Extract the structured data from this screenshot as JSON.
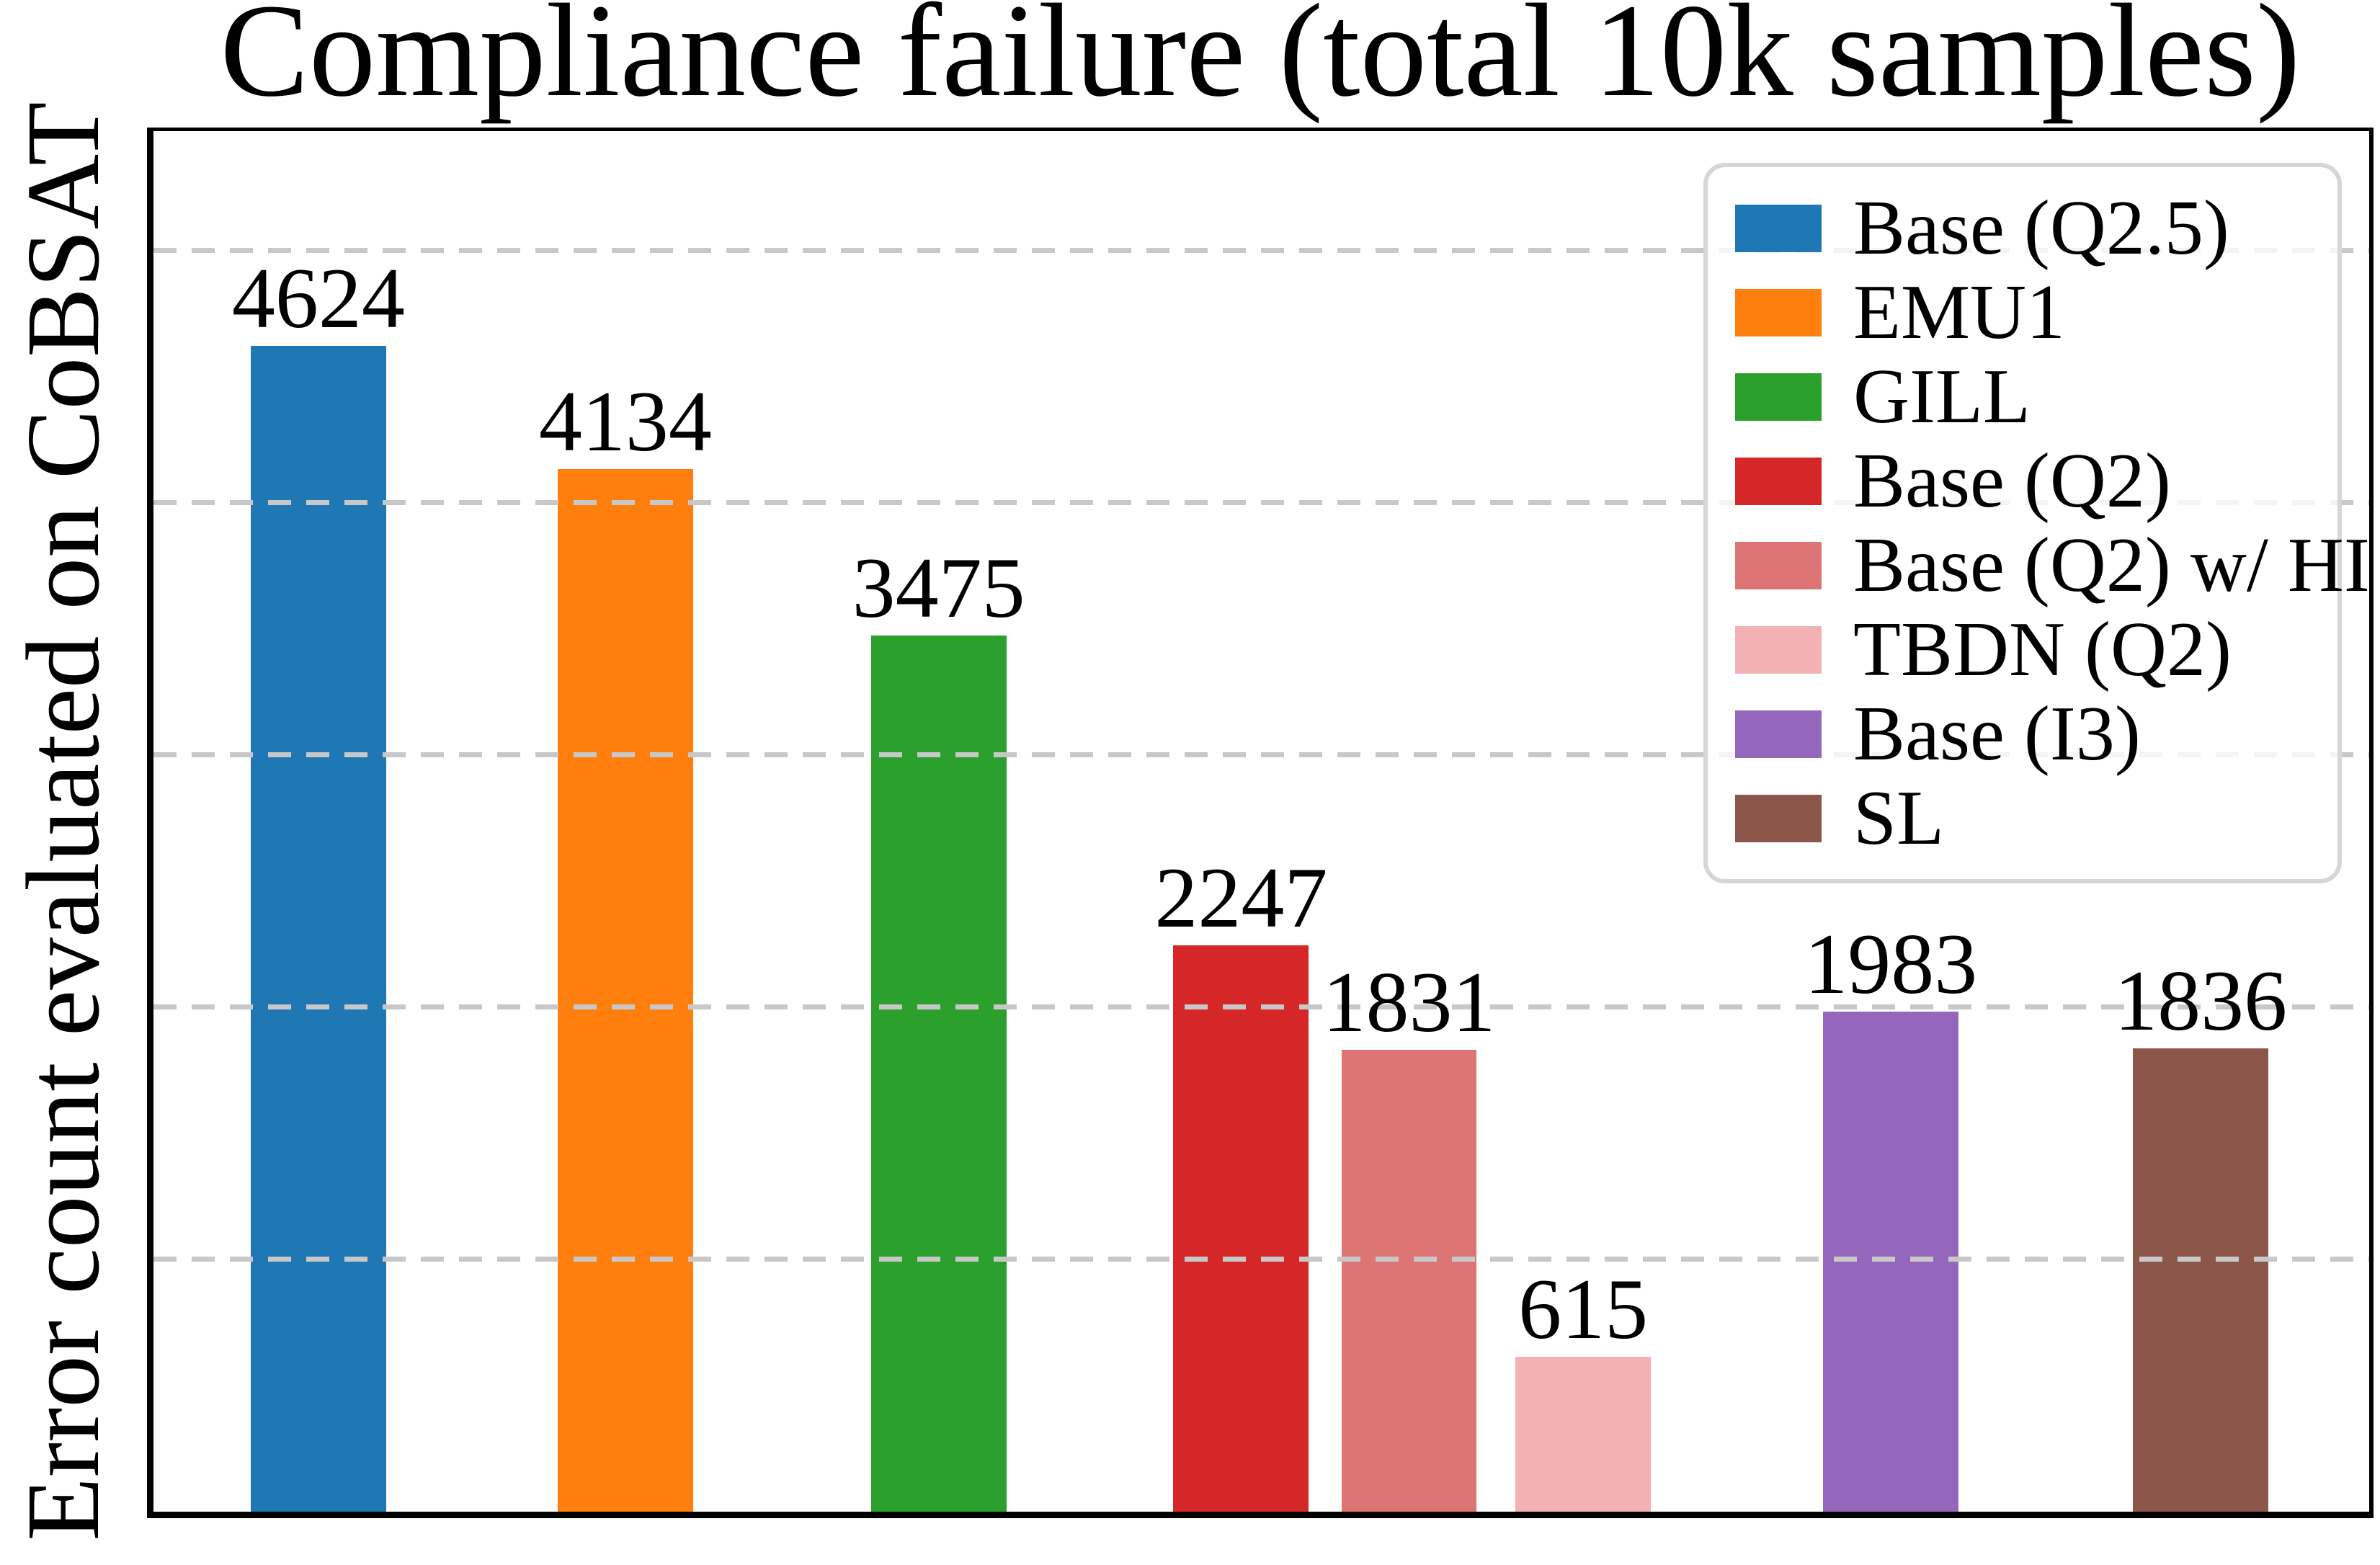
{
  "chart_data": {
    "type": "bar",
    "title": "Compliance failure (total 10k samples)",
    "ylabel": "Error count evaluated on CoBSAT",
    "xlabel": "",
    "ylim": [
      0,
      5474
    ],
    "x_axis_tick_labels": "none",
    "value_labels_shown": true,
    "grid": {
      "axis": "y",
      "values": [
        1000,
        2000,
        3000,
        4000,
        5000
      ],
      "style": "dashed",
      "color": "#c8c8c8",
      "drawn_over_bars": true
    },
    "legend_position": "upper right",
    "bars": [
      {
        "label": "Base (Q2.5)",
        "value": 4624,
        "color": "#1f77b4",
        "x_frac": 0.0439,
        "w_frac": 0.0611
      },
      {
        "label": "EMU1",
        "value": 4134,
        "color": "#ff7f0e",
        "x_frac": 0.1824,
        "w_frac": 0.0611
      },
      {
        "label": "GILL",
        "value": 3475,
        "color": "#2ca02c",
        "x_frac": 0.3238,
        "w_frac": 0.0611
      },
      {
        "label": "Base (Q2)",
        "value": 2247,
        "color": "#d62728",
        "x_frac": 0.4603,
        "w_frac": 0.0611
      },
      {
        "label": "Base (Q2) w/ HI",
        "value": 1831,
        "color": "#dd7575",
        "x_frac": 0.5361,
        "w_frac": 0.0611
      },
      {
        "label": "TBDN (Q2)",
        "value": 615,
        "color": "#f3b1b4",
        "x_frac": 0.6147,
        "w_frac": 0.0611
      },
      {
        "label": "Base (I3)",
        "value": 1983,
        "color": "#9467bd",
        "x_frac": 0.7536,
        "w_frac": 0.0611
      },
      {
        "label": "SL",
        "value": 1836,
        "color": "#8c564b",
        "x_frac": 0.8934,
        "w_frac": 0.0611
      }
    ],
    "colors": {
      "axes_spine": "#000000",
      "gridline": "#c8c8c8",
      "legend_border": "#d6d6d6",
      "background": "#ffffff",
      "text": "#000000"
    }
  }
}
